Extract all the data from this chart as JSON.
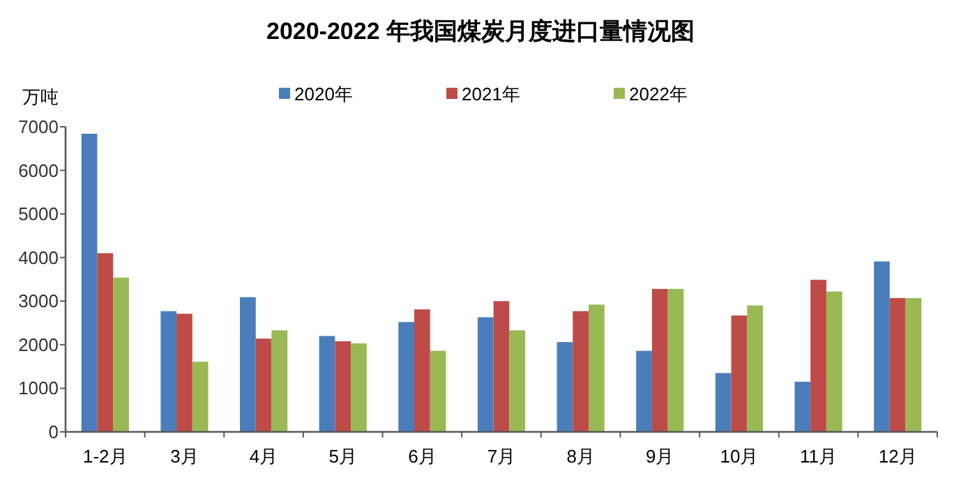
{
  "chart_data": {
    "type": "bar",
    "title": "2020-2022 年我国煤炭月度进口量情况图",
    "ylabel": "万吨",
    "categories": [
      "1-2月",
      "3月",
      "4月",
      "5月",
      "6月",
      "7月",
      "8月",
      "9月",
      "10月",
      "11月",
      "12月"
    ],
    "series": [
      {
        "name": "2020年",
        "color": "#4a7ebb",
        "values": [
          6840,
          2770,
          3090,
          2200,
          2520,
          2630,
          2060,
          1860,
          1350,
          1150,
          3910
        ]
      },
      {
        "name": "2021年",
        "color": "#be4b48",
        "values": [
          4100,
          2710,
          2140,
          2080,
          2810,
          3000,
          2770,
          3280,
          2670,
          3490,
          3070
        ]
      },
      {
        "name": "2022年",
        "color": "#98b954",
        "values": [
          3540,
          1610,
          2330,
          2030,
          1860,
          2330,
          2920,
          3280,
          2900,
          3220,
          3070
        ]
      }
    ],
    "ylim": [
      0,
      7000
    ],
    "yticks": [
      0,
      1000,
      2000,
      3000,
      4000,
      5000,
      6000,
      7000
    ],
    "grid": false,
    "legend": "top"
  }
}
